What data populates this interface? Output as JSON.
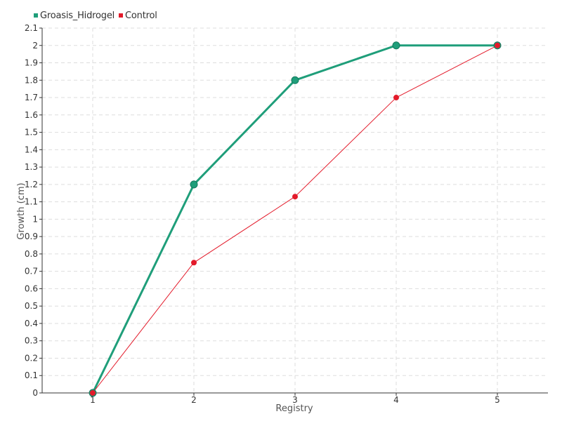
{
  "chart_data": {
    "type": "line",
    "x": [
      1,
      2,
      3,
      4,
      5
    ],
    "x_tick_labels": [
      "1",
      "2",
      "3",
      "4",
      "5"
    ],
    "xlabel": "Registry",
    "ylabel": "Growth (cm)",
    "y_ticks": [
      0,
      0.1,
      0.2,
      0.3,
      0.4,
      0.5,
      0.6,
      0.7,
      0.8,
      0.9,
      1,
      1.1,
      1.2,
      1.3,
      1.4,
      1.5,
      1.6,
      1.7,
      1.8,
      1.9,
      2,
      2.1
    ],
    "y_tick_labels": [
      "0",
      "0.1",
      "0.2",
      "0.3",
      "0.4",
      "0.5",
      "0.6",
      "0.7",
      "0.8",
      "0.9",
      "1",
      "1.1",
      "1.2",
      "1.3",
      "1.4",
      "1.5",
      "1.6",
      "1.7",
      "1.8",
      "1.9",
      "2",
      "2.1"
    ],
    "xlim": [
      0.5,
      5.5
    ],
    "ylim": [
      0,
      2.1
    ],
    "grid": true,
    "legend_position": "top-left",
    "series": [
      {
        "name": "Groasis_Hidrogel",
        "color": "#1f9e7a",
        "values": [
          0,
          1.2,
          1.8,
          2.0,
          2.0
        ]
      },
      {
        "name": "Control",
        "color": "#e31a2a",
        "values": [
          0,
          0.75,
          1.13,
          1.7,
          2.0
        ]
      }
    ]
  }
}
